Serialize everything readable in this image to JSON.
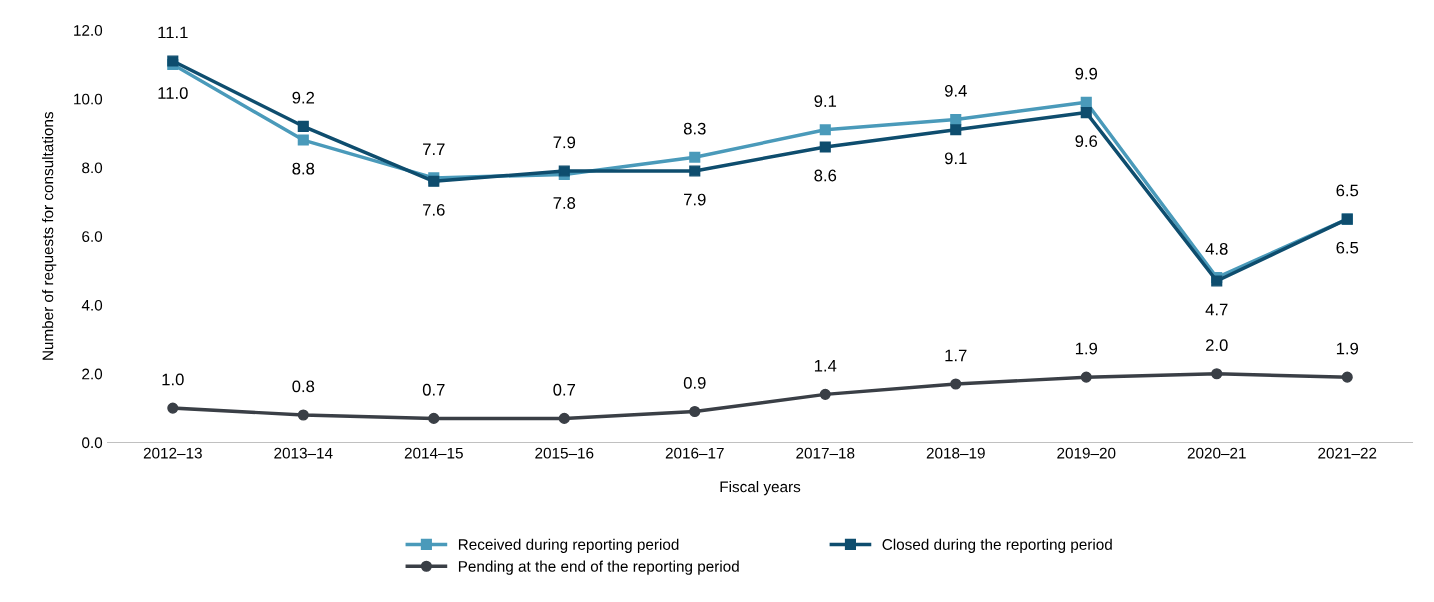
{
  "chart_data": {
    "type": "line",
    "xlabel": "Fiscal years",
    "ylabel": "Number of requests for consultations",
    "categories": [
      "2012–13",
      "2013–14",
      "2014–15",
      "2015–16",
      "2016–17",
      "2017–18",
      "2018–19",
      "2019–20",
      "2020–21",
      "2021–22"
    ],
    "series": [
      {
        "name": "Received during reporting period",
        "color": "#4a9aba",
        "marker": "square",
        "values": [
          11.0,
          8.8,
          7.7,
          7.8,
          8.3,
          9.1,
          9.4,
          9.9,
          4.8,
          6.5
        ],
        "value_labels": [
          "11.0",
          "8.8",
          "7.7",
          "7.8",
          "8.3",
          "9.1",
          "9.4",
          "9.9",
          "4.8",
          "6.5"
        ]
      },
      {
        "name": "Closed during the reporting period",
        "color": "#0e4d6e",
        "marker": "square",
        "values": [
          11.1,
          9.2,
          7.6,
          7.9,
          7.9,
          8.6,
          9.1,
          9.6,
          4.7,
          6.5
        ],
        "value_labels": [
          "11.1",
          "9.2",
          "7.6",
          "7.9",
          "7.9",
          "8.6",
          "9.1",
          "9.6",
          "4.7",
          "6.5"
        ]
      },
      {
        "name": "Pending at the end of the reporting period",
        "color": "#3a3f46",
        "marker": "circle",
        "values": [
          1.0,
          0.8,
          0.7,
          0.7,
          0.9,
          1.4,
          1.7,
          1.9,
          2.0,
          1.9
        ],
        "value_labels": [
          "1.0",
          "0.8",
          "0.7",
          "0.7",
          "0.9",
          "1.4",
          "1.7",
          "1.9",
          "2.0",
          "1.9"
        ]
      }
    ],
    "ylim": [
      0,
      12
    ],
    "yticks": [
      {
        "value": 0,
        "label": "0.0"
      },
      {
        "value": 2,
        "label": "2.0"
      },
      {
        "value": 4,
        "label": "4.0"
      },
      {
        "value": 6,
        "label": "6.0"
      },
      {
        "value": 8,
        "label": "8.0"
      },
      {
        "value": 10,
        "label": "10.0"
      },
      {
        "value": 12,
        "label": "12.0"
      }
    ],
    "grid": false,
    "legend": "bottom",
    "line_style": "solid"
  }
}
